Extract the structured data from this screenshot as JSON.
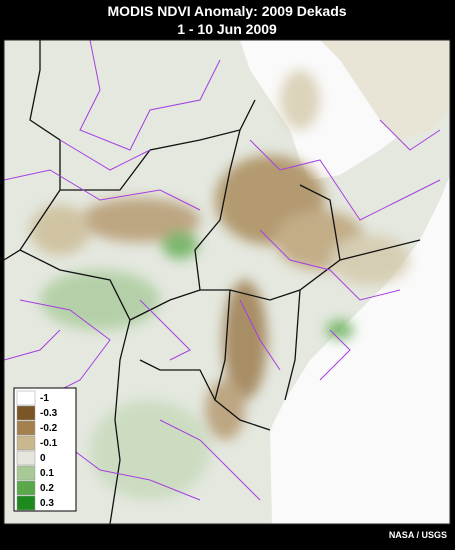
{
  "title": "MODIS NDVI Anomaly: 2009 Dekads",
  "subtitle": "1 - 10 Jun 2009",
  "legend": [
    {
      "label": "-1",
      "color": "#ffffff"
    },
    {
      "label": "-0.3",
      "color": "#7a5526"
    },
    {
      "label": "-0.2",
      "color": "#a3804c"
    },
    {
      "label": "-0.1",
      "color": "#c9b78e"
    },
    {
      "label": "0",
      "color": "#e6e6de"
    },
    {
      "label": "0.1",
      "color": "#a6c996"
    },
    {
      "label": "0.2",
      "color": "#5aa84a"
    },
    {
      "label": "0.3",
      "color": "#1c8a1c"
    }
  ],
  "credit": "NASA / USGS"
}
